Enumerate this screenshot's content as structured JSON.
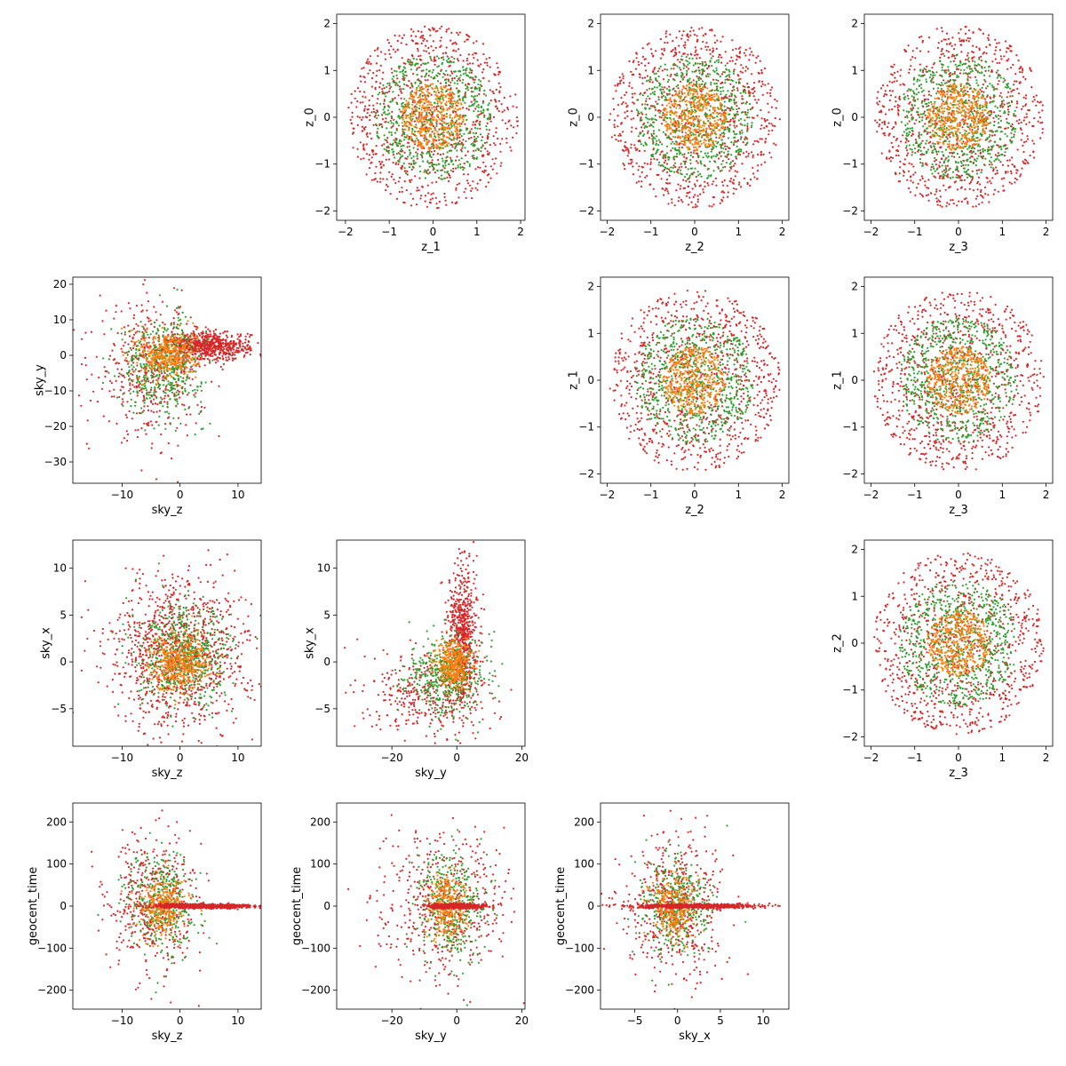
{
  "colors": {
    "red": "#d62728",
    "green": "#2ca02c",
    "orange": "#ff7f0e",
    "blue": "#1f77b4"
  },
  "chart_data": [
    {
      "type": "scatter",
      "row": 0,
      "col": 1,
      "xlabel": "z_1",
      "ylabel": "z_0",
      "xlim": [
        -2.2,
        2.1
      ],
      "ylim": [
        -2.2,
        2.2
      ],
      "xticks": [
        -2,
        -1,
        0,
        1,
        2
      ],
      "yticks": [
        -2,
        -1,
        0,
        1,
        2
      ],
      "pattern": "rings",
      "clusters": [
        {
          "color": "red",
          "n": 900,
          "cx": 0,
          "cy": 0,
          "rmin": 0.0,
          "rmax": 1.95,
          "sx": 1.95,
          "sy": 1.95
        },
        {
          "color": "green",
          "n": 650,
          "cx": 0,
          "cy": 0,
          "rmin": 0.0,
          "rmax": 1.35,
          "sx": 1.35,
          "sy": 1.35
        },
        {
          "color": "orange",
          "n": 420,
          "cx": 0,
          "cy": 0,
          "rmin": 0.0,
          "rmax": 0.72,
          "sx": 0.72,
          "sy": 0.72
        }
      ]
    },
    {
      "type": "scatter",
      "row": 0,
      "col": 2,
      "xlabel": "z_2",
      "ylabel": "z_0",
      "xlim": [
        -2.15,
        2.15
      ],
      "ylim": [
        -2.2,
        2.2
      ],
      "xticks": [
        -2,
        -1,
        0,
        1,
        2
      ],
      "yticks": [
        -2,
        -1,
        0,
        1,
        2
      ],
      "pattern": "rings",
      "clusters": [
        {
          "color": "red",
          "n": 900,
          "cx": 0,
          "cy": 0,
          "rmin": 0.0,
          "rmax": 1.95,
          "sx": 1.95,
          "sy": 1.95
        },
        {
          "color": "green",
          "n": 650,
          "cx": 0,
          "cy": 0,
          "rmin": 0.0,
          "rmax": 1.35,
          "sx": 1.35,
          "sy": 1.35
        },
        {
          "color": "orange",
          "n": 420,
          "cx": 0,
          "cy": 0,
          "rmin": 0.0,
          "rmax": 0.72,
          "sx": 0.72,
          "sy": 0.72
        }
      ]
    },
    {
      "type": "scatter",
      "row": 0,
      "col": 3,
      "xlabel": "z_3",
      "ylabel": "z_0",
      "xlim": [
        -2.15,
        2.15
      ],
      "ylim": [
        -2.2,
        2.2
      ],
      "xticks": [
        -2,
        -1,
        0,
        1,
        2
      ],
      "yticks": [
        -2,
        -1,
        0,
        1,
        2
      ],
      "pattern": "rings",
      "clusters": [
        {
          "color": "red",
          "n": 900,
          "cx": 0,
          "cy": 0,
          "rmin": 0.0,
          "rmax": 1.95,
          "sx": 1.95,
          "sy": 1.95
        },
        {
          "color": "green",
          "n": 650,
          "cx": 0,
          "cy": 0,
          "rmin": 0.0,
          "rmax": 1.35,
          "sx": 1.35,
          "sy": 1.35
        },
        {
          "color": "orange",
          "n": 420,
          "cx": 0,
          "cy": 0,
          "rmin": 0.0,
          "rmax": 0.72,
          "sx": 0.72,
          "sy": 0.72
        }
      ]
    },
    {
      "type": "scatter",
      "row": 1,
      "col": 0,
      "xlabel": "sky_z",
      "ylabel": "sky_y",
      "xlim": [
        -18.5,
        14
      ],
      "ylim": [
        -36,
        22
      ],
      "xticks": [
        -10,
        0,
        10
      ],
      "yticks": [
        -30,
        -20,
        -10,
        0,
        10,
        20
      ],
      "pattern": "blobs",
      "clusters": [
        {
          "color": "red",
          "n": 500,
          "cx": -5,
          "cy": -4,
          "sx": 4.5,
          "sy": 9
        },
        {
          "color": "red",
          "n": 700,
          "cx": 5,
          "cy": 2.5,
          "sx": 3.5,
          "sy": 2
        },
        {
          "color": "green",
          "n": 450,
          "cx": -3,
          "cy": -3,
          "sx": 3.5,
          "sy": 6.5
        },
        {
          "color": "orange",
          "n": 380,
          "cx": -2,
          "cy": 0,
          "sx": 2.5,
          "sy": 3.5
        }
      ]
    },
    {
      "type": "scatter",
      "row": 1,
      "col": 2,
      "xlabel": "z_2",
      "ylabel": "z_1",
      "xlim": [
        -2.15,
        2.15
      ],
      "ylim": [
        -2.2,
        2.2
      ],
      "xticks": [
        -2,
        -1,
        0,
        1,
        2
      ],
      "yticks": [
        -2,
        -1,
        0,
        1,
        2
      ],
      "pattern": "rings",
      "clusters": [
        {
          "color": "red",
          "n": 900,
          "cx": 0,
          "cy": 0,
          "rmin": 0.0,
          "rmax": 1.95,
          "sx": 1.95,
          "sy": 1.95
        },
        {
          "color": "green",
          "n": 650,
          "cx": 0,
          "cy": 0,
          "rmin": 0.0,
          "rmax": 1.35,
          "sx": 1.35,
          "sy": 1.35
        },
        {
          "color": "orange",
          "n": 420,
          "cx": 0,
          "cy": 0,
          "rmin": 0.0,
          "rmax": 0.72,
          "sx": 0.72,
          "sy": 0.72
        }
      ]
    },
    {
      "type": "scatter",
      "row": 1,
      "col": 3,
      "xlabel": "z_3",
      "ylabel": "z_1",
      "xlim": [
        -2.15,
        2.15
      ],
      "ylim": [
        -2.2,
        2.2
      ],
      "xticks": [
        -2,
        -1,
        0,
        1,
        2
      ],
      "yticks": [
        -2,
        -1,
        0,
        1,
        2
      ],
      "pattern": "rings",
      "clusters": [
        {
          "color": "red",
          "n": 900,
          "cx": 0,
          "cy": 0,
          "rmin": 0.0,
          "rmax": 1.95,
          "sx": 1.95,
          "sy": 1.95
        },
        {
          "color": "green",
          "n": 650,
          "cx": 0,
          "cy": 0,
          "rmin": 0.0,
          "rmax": 1.35,
          "sx": 1.35,
          "sy": 1.35
        },
        {
          "color": "orange",
          "n": 420,
          "cx": 0,
          "cy": 0,
          "rmin": 0.0,
          "rmax": 0.72,
          "sx": 0.72,
          "sy": 0.72
        }
      ]
    },
    {
      "type": "scatter",
      "row": 2,
      "col": 0,
      "xlabel": "sky_z",
      "ylabel": "sky_x",
      "xlim": [
        -18.5,
        14
      ],
      "ylim": [
        -9,
        13
      ],
      "xticks": [
        -10,
        0,
        10
      ],
      "yticks": [
        -5,
        0,
        5,
        10
      ],
      "pattern": "blobs",
      "clusters": [
        {
          "color": "red",
          "n": 1100,
          "cx": 0,
          "cy": 1,
          "sx": 6,
          "sy": 4
        },
        {
          "color": "green",
          "n": 550,
          "cx": 1,
          "cy": 0.5,
          "sx": 4,
          "sy": 2.6
        },
        {
          "color": "orange",
          "n": 420,
          "cx": 0,
          "cy": 0,
          "sx": 2.6,
          "sy": 1.5
        }
      ]
    },
    {
      "type": "scatter",
      "row": 2,
      "col": 1,
      "xlabel": "sky_y",
      "ylabel": "sky_x",
      "xlim": [
        -37,
        21
      ],
      "ylim": [
        -9,
        13
      ],
      "xticks": [
        -20,
        0,
        20
      ],
      "yticks": [
        -5,
        0,
        5,
        10
      ],
      "pattern": "blobs",
      "clusters": [
        {
          "color": "red",
          "n": 380,
          "cx": -9,
          "cy": -3.5,
          "sx": 9,
          "sy": 2.5
        },
        {
          "color": "red",
          "n": 650,
          "cx": 2,
          "cy": 3,
          "sx": 2.2,
          "sy": 3.8
        },
        {
          "color": "green",
          "n": 420,
          "cx": -3,
          "cy": -1.5,
          "sx": 6,
          "sy": 2
        },
        {
          "color": "orange",
          "n": 380,
          "cx": -1,
          "cy": -0.3,
          "sx": 2.8,
          "sy": 1.3
        }
      ]
    },
    {
      "type": "scatter",
      "row": 2,
      "col": 3,
      "xlabel": "z_3",
      "ylabel": "z_2",
      "xlim": [
        -2.15,
        2.15
      ],
      "ylim": [
        -2.2,
        2.2
      ],
      "xticks": [
        -2,
        -1,
        0,
        1,
        2
      ],
      "yticks": [
        -2,
        -1,
        0,
        1,
        2
      ],
      "pattern": "rings",
      "clusters": [
        {
          "color": "red",
          "n": 900,
          "cx": 0,
          "cy": 0,
          "rmin": 0.0,
          "rmax": 1.95,
          "sx": 1.95,
          "sy": 1.95
        },
        {
          "color": "green",
          "n": 650,
          "cx": 0,
          "cy": 0,
          "rmin": 0.0,
          "rmax": 1.35,
          "sx": 1.35,
          "sy": 1.35
        },
        {
          "color": "orange",
          "n": 420,
          "cx": 0,
          "cy": 0,
          "rmin": 0.0,
          "rmax": 0.72,
          "sx": 0.72,
          "sy": 0.72
        }
      ]
    },
    {
      "type": "scatter",
      "row": 3,
      "col": 0,
      "xlabel": "sky_z",
      "ylabel": "geocent_time",
      "xlim": [
        -18.5,
        14
      ],
      "ylim": [
        -245,
        245
      ],
      "xticks": [
        -10,
        0,
        10
      ],
      "yticks": [
        -200,
        -100,
        0,
        100,
        200
      ],
      "pattern": "blobs",
      "clusters": [
        {
          "color": "red",
          "n": 450,
          "cx": -5,
          "cy": 0,
          "sx": 4,
          "sy": 90
        },
        {
          "color": "green",
          "n": 350,
          "cx": -3,
          "cy": 0,
          "sx": 3,
          "sy": 60
        },
        {
          "color": "orange",
          "n": 300,
          "cx": -3,
          "cy": 0,
          "sx": 2,
          "sy": 35
        },
        {
          "color": "red",
          "n": 900,
          "cx": 4,
          "cy": 0,
          "sx": 4.5,
          "sy": 2.5
        }
      ]
    },
    {
      "type": "scatter",
      "row": 3,
      "col": 1,
      "xlabel": "sky_y",
      "ylabel": "geocent_time",
      "xlim": [
        -37,
        21
      ],
      "ylim": [
        -245,
        245
      ],
      "xticks": [
        -20,
        0,
        20
      ],
      "yticks": [
        -200,
        -100,
        0,
        100,
        200
      ],
      "pattern": "blobs",
      "clusters": [
        {
          "color": "red",
          "n": 500,
          "cx": -4,
          "cy": 0,
          "sx": 10,
          "sy": 85
        },
        {
          "color": "green",
          "n": 350,
          "cx": -2,
          "cy": 0,
          "sx": 5,
          "sy": 65
        },
        {
          "color": "orange",
          "n": 300,
          "cx": -3,
          "cy": 0,
          "sx": 3,
          "sy": 40
        },
        {
          "color": "red",
          "n": 900,
          "cx": 0,
          "cy": 0,
          "sx": 4,
          "sy": 2.5
        }
      ]
    },
    {
      "type": "scatter",
      "row": 3,
      "col": 2,
      "xlabel": "sky_x",
      "ylabel": "geocent_time",
      "xlim": [
        -9,
        13
      ],
      "ylim": [
        -245,
        245
      ],
      "xticks": [
        -5,
        0,
        5,
        10
      ],
      "yticks": [
        -200,
        -100,
        0,
        100,
        200
      ],
      "pattern": "blobs",
      "clusters": [
        {
          "color": "red",
          "n": 500,
          "cx": -0.5,
          "cy": 0,
          "sx": 3,
          "sy": 85
        },
        {
          "color": "green",
          "n": 350,
          "cx": -0.5,
          "cy": 0,
          "sx": 2,
          "sy": 60
        },
        {
          "color": "orange",
          "n": 300,
          "cx": -0.5,
          "cy": 0,
          "sx": 1.3,
          "sy": 38
        },
        {
          "color": "red",
          "n": 900,
          "cx": 2,
          "cy": 0,
          "sx": 3.5,
          "sy": 2.5
        }
      ]
    }
  ]
}
